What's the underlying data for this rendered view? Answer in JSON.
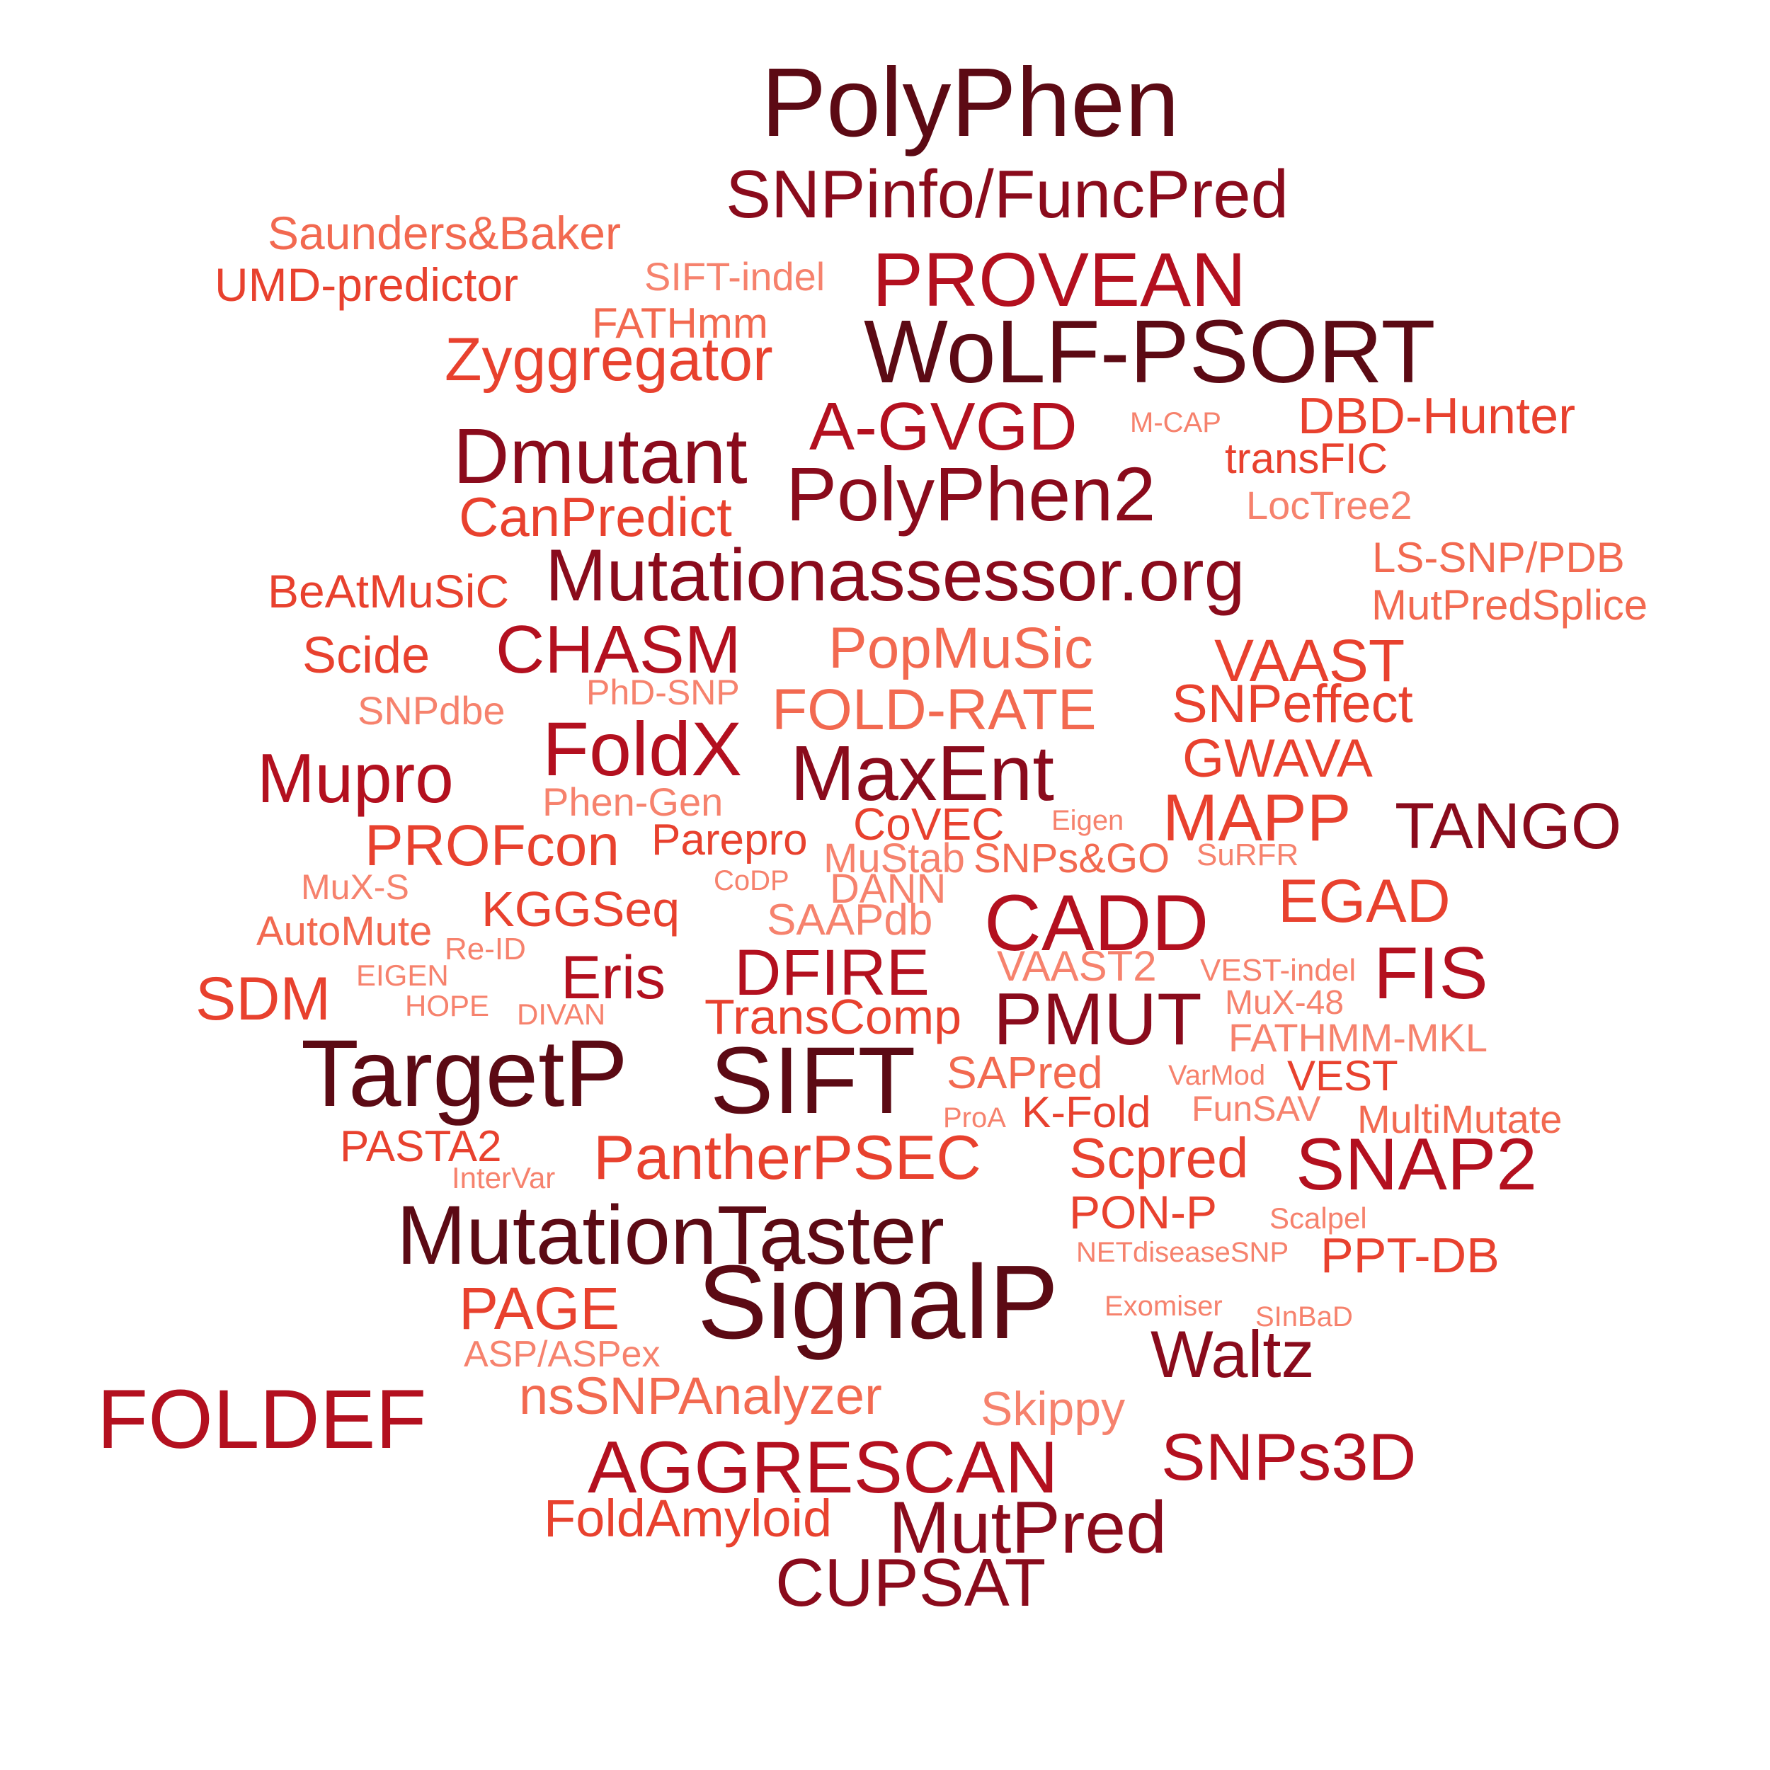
{
  "palette": {
    "darkest": "#5c0a14",
    "dark": "#8a0b1c",
    "red": "#b3101f",
    "orange_red": "#e8412e",
    "salmon": "#f26950",
    "light": "#f6826d"
  },
  "words": [
    {
      "text": "PolyPhen",
      "tone": "darkest"
    },
    {
      "text": "SNPinfo/FuncPred",
      "tone": "dark"
    },
    {
      "text": "Saunders&Baker",
      "tone": "salmon"
    },
    {
      "text": "UMD-predictor",
      "tone": "orange_red"
    },
    {
      "text": "SIFT-indel",
      "tone": "light"
    },
    {
      "text": "PROVEAN",
      "tone": "red"
    },
    {
      "text": "FATHmm",
      "tone": "salmon"
    },
    {
      "text": "WoLF-PSORT",
      "tone": "darkest"
    },
    {
      "text": "Zyggregator",
      "tone": "orange_red"
    },
    {
      "text": "A-GVGD",
      "tone": "red"
    },
    {
      "text": "M-CAP",
      "tone": "light"
    },
    {
      "text": "DBD-Hunter",
      "tone": "orange_red"
    },
    {
      "text": "Dmutant",
      "tone": "dark"
    },
    {
      "text": "transFIC",
      "tone": "orange_red"
    },
    {
      "text": "PolyPhen2",
      "tone": "dark"
    },
    {
      "text": "LocTree2",
      "tone": "light"
    },
    {
      "text": "CanPredict",
      "tone": "orange_red"
    },
    {
      "text": "Mutationassessor.org",
      "tone": "dark"
    },
    {
      "text": "LS-SNP/PDB",
      "tone": "salmon"
    },
    {
      "text": "BeAtMuSiC",
      "tone": "orange_red"
    },
    {
      "text": "MutPredSplice",
      "tone": "salmon"
    },
    {
      "text": "Scide",
      "tone": "orange_red"
    },
    {
      "text": "CHASM",
      "tone": "red"
    },
    {
      "text": "PopMuSic",
      "tone": "salmon"
    },
    {
      "text": "VAAST",
      "tone": "orange_red"
    },
    {
      "text": "PhD-SNP",
      "tone": "light"
    },
    {
      "text": "SNPdbe",
      "tone": "light"
    },
    {
      "text": "FOLD-RATE",
      "tone": "salmon"
    },
    {
      "text": "SNPeffect",
      "tone": "orange_red"
    },
    {
      "text": "FoldX",
      "tone": "red"
    },
    {
      "text": "GWAVA",
      "tone": "orange_red"
    },
    {
      "text": "Mupro",
      "tone": "red"
    },
    {
      "text": "MaxEnt",
      "tone": "dark"
    },
    {
      "text": "Phen-Gen",
      "tone": "light"
    },
    {
      "text": "CoVEC",
      "tone": "orange_red"
    },
    {
      "text": "Eigen",
      "tone": "light"
    },
    {
      "text": "MAPP",
      "tone": "orange_red"
    },
    {
      "text": "TANGO",
      "tone": "dark"
    },
    {
      "text": "PROFcon",
      "tone": "orange_red"
    },
    {
      "text": "Parepro",
      "tone": "orange_red"
    },
    {
      "text": "MuStab",
      "tone": "light"
    },
    {
      "text": "SNPs&GO",
      "tone": "salmon"
    },
    {
      "text": "SuRFR",
      "tone": "light"
    },
    {
      "text": "MuX-S",
      "tone": "light"
    },
    {
      "text": "CoDP",
      "tone": "light"
    },
    {
      "text": "DANN",
      "tone": "light"
    },
    {
      "text": "EGAD",
      "tone": "orange_red"
    },
    {
      "text": "KGGSeq",
      "tone": "orange_red"
    },
    {
      "text": "AutoMute",
      "tone": "salmon"
    },
    {
      "text": "SAAPdb",
      "tone": "light"
    },
    {
      "text": "CADD",
      "tone": "red"
    },
    {
      "text": "Re-ID",
      "tone": "light"
    },
    {
      "text": "Eris",
      "tone": "red"
    },
    {
      "text": "DFIRE",
      "tone": "red"
    },
    {
      "text": "FIS",
      "tone": "red"
    },
    {
      "text": "EIGEN",
      "tone": "light"
    },
    {
      "text": "VAAST2",
      "tone": "light"
    },
    {
      "text": "VEST-indel",
      "tone": "light"
    },
    {
      "text": "SDM",
      "tone": "orange_red"
    },
    {
      "text": "HOPE",
      "tone": "light"
    },
    {
      "text": "DIVAN",
      "tone": "light"
    },
    {
      "text": "MuX-48",
      "tone": "light"
    },
    {
      "text": "TransComp",
      "tone": "orange_red"
    },
    {
      "text": "PMUT",
      "tone": "dark"
    },
    {
      "text": "FATHMM-MKL",
      "tone": "light"
    },
    {
      "text": "TargetP",
      "tone": "darkest"
    },
    {
      "text": "SIFT",
      "tone": "darkest"
    },
    {
      "text": "SAPred",
      "tone": "salmon"
    },
    {
      "text": "VarMod",
      "tone": "light"
    },
    {
      "text": "VEST",
      "tone": "orange_red"
    },
    {
      "text": "ProA",
      "tone": "light"
    },
    {
      "text": "K-Fold",
      "tone": "orange_red"
    },
    {
      "text": "FunSAV",
      "tone": "light"
    },
    {
      "text": "MultiMutate",
      "tone": "salmon"
    },
    {
      "text": "PASTA2",
      "tone": "orange_red"
    },
    {
      "text": "PantherPSEC",
      "tone": "orange_red"
    },
    {
      "text": "Scpred",
      "tone": "orange_red"
    },
    {
      "text": "SNAP2",
      "tone": "red"
    },
    {
      "text": "InterVar",
      "tone": "light"
    },
    {
      "text": "MutationTaster",
      "tone": "darkest"
    },
    {
      "text": "PON-P",
      "tone": "orange_red"
    },
    {
      "text": "Scalpel",
      "tone": "light"
    },
    {
      "text": "NETdiseaseSNP",
      "tone": "light"
    },
    {
      "text": "PPT-DB",
      "tone": "orange_red"
    },
    {
      "text": "SignalP",
      "tone": "darkest"
    },
    {
      "text": "PAGE",
      "tone": "orange_red"
    },
    {
      "text": "Exomiser",
      "tone": "light"
    },
    {
      "text": "SInBaD",
      "tone": "light"
    },
    {
      "text": "ASP/ASPex",
      "tone": "light"
    },
    {
      "text": "Waltz",
      "tone": "dark"
    },
    {
      "text": "FOLDEF",
      "tone": "red"
    },
    {
      "text": "nsSNPAnalyzer",
      "tone": "salmon"
    },
    {
      "text": "Skippy",
      "tone": "light"
    },
    {
      "text": "SNPs3D",
      "tone": "red"
    },
    {
      "text": "AGGRESCAN",
      "tone": "red"
    },
    {
      "text": "FoldAmyloid",
      "tone": "orange_red"
    },
    {
      "text": "MutPred",
      "tone": "dark"
    },
    {
      "text": "CUPSAT",
      "tone": "dark"
    }
  ]
}
